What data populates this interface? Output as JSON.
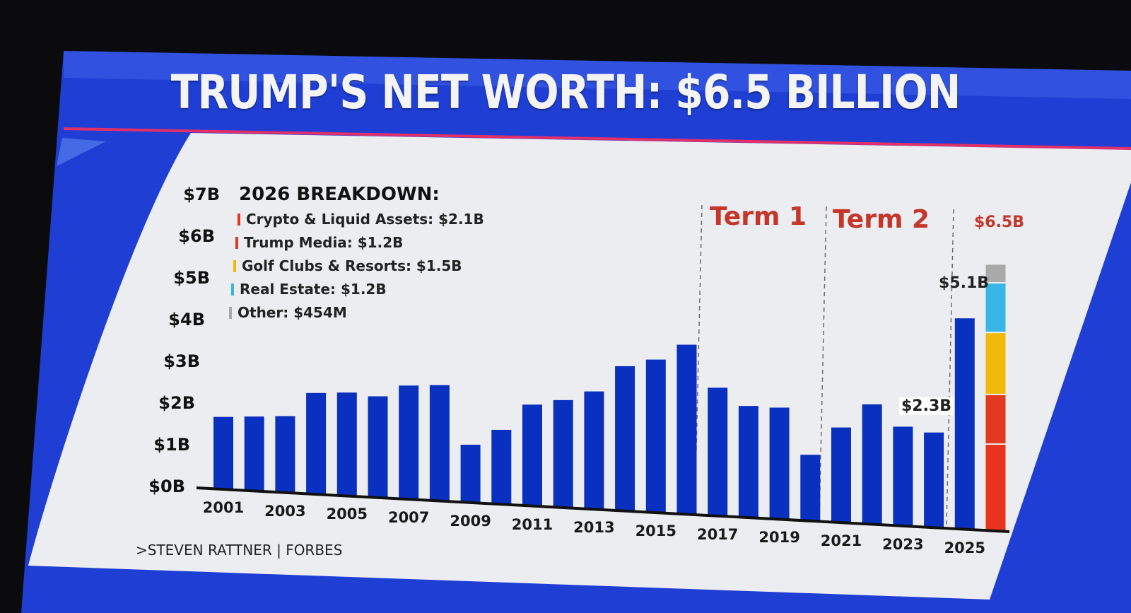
{
  "title": "TRUMP'S NET WORTH: $6.5 BILLION",
  "source": ">STEVEN RATTNER | FORBES",
  "legend": {
    "title": "2026 BREAKDOWN:",
    "items": [
      {
        "label": "Crypto & Liquid Assets: $2.1B",
        "color": "#e8341c"
      },
      {
        "label": "Trump Media: $1.2B",
        "color": "#e33a1f"
      },
      {
        "label": "Golf Clubs & Resorts: $1.5B",
        "color": "#f2b90c"
      },
      {
        "label": "Real Estate: $1.2B",
        "color": "#38b6e8"
      },
      {
        "label": "Other: $454M",
        "color": "#a9a9a9"
      }
    ]
  },
  "annotations": {
    "term1": "Term 1",
    "term2": "Term 2",
    "total_label": "$6.5B",
    "label_2025": "$5.1B",
    "label_2024": "$2.3B"
  },
  "colors": {
    "bar": "#0a30c0",
    "background_blue": "#1f3ed4",
    "panel": "#ecedf0",
    "accent_red": "#c4362a",
    "divider_pink": "#e0306a"
  },
  "chart_data": {
    "type": "bar",
    "title": "TRUMP'S NET WORTH: $6.5 BILLION",
    "xlabel": "",
    "ylabel": "",
    "ylim": [
      0,
      7
    ],
    "y_ticks": [
      "$0B",
      "$1B",
      "$2B",
      "$3B",
      "$4B",
      "$5B",
      "$6B",
      "$7B"
    ],
    "x_tick_labels": [
      "2001",
      "2003",
      "2005",
      "2007",
      "2009",
      "2011",
      "2013",
      "2015",
      "2017",
      "2019",
      "2021",
      "2023",
      "2025"
    ],
    "categories": [
      "2001",
      "2002",
      "2003",
      "2004",
      "2005",
      "2006",
      "2007",
      "2008",
      "2009",
      "2010",
      "2011",
      "2012",
      "2013",
      "2014",
      "2015",
      "2016",
      "2017",
      "2018",
      "2019",
      "2020",
      "2021",
      "2022",
      "2023",
      "2024",
      "2025",
      "2026"
    ],
    "values": [
      1.75,
      1.8,
      1.85,
      2.45,
      2.5,
      2.45,
      2.75,
      2.8,
      1.4,
      1.8,
      2.45,
      2.6,
      2.85,
      3.5,
      3.7,
      4.1,
      3.1,
      2.7,
      2.7,
      1.6,
      2.3,
      2.9,
      2.4,
      2.3,
      5.1,
      6.5
    ],
    "stacked_2026": [
      {
        "name": "Crypto & Liquid Assets",
        "value": 2.1,
        "color": "#e8341c"
      },
      {
        "name": "Trump Media",
        "value": 1.2,
        "color": "#e33a1f"
      },
      {
        "name": "Golf Clubs & Resorts",
        "value": 1.5,
        "color": "#f2b90c"
      },
      {
        "name": "Real Estate",
        "value": 1.2,
        "color": "#38b6e8"
      },
      {
        "name": "Other",
        "value": 0.454,
        "color": "#a9a9a9"
      }
    ],
    "grid": false,
    "legend_position": "top-left"
  }
}
